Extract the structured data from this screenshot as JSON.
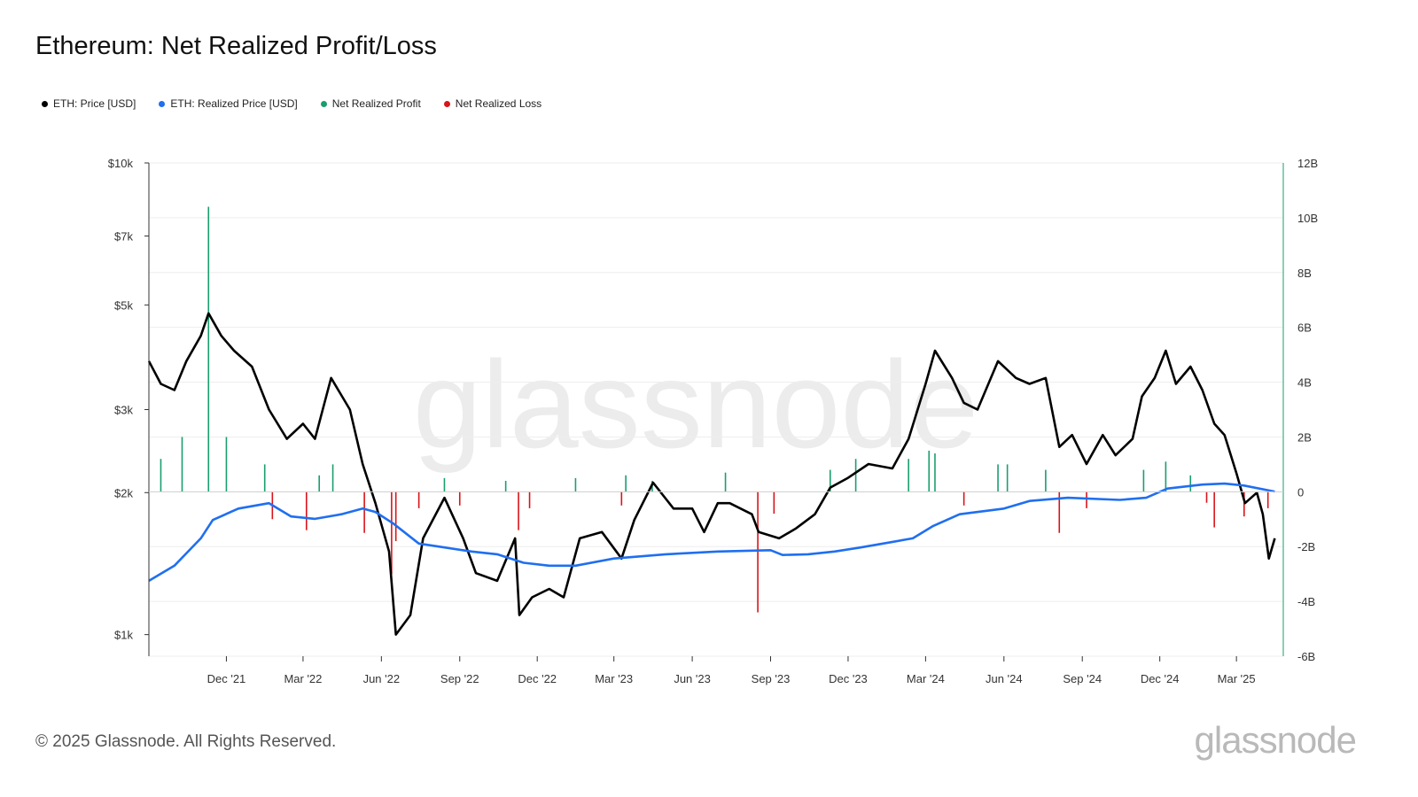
{
  "title": "Ethereum: Net Realized Profit/Loss",
  "legend": [
    {
      "label": "ETH: Price [USD]",
      "color": "#000000"
    },
    {
      "label": "ETH: Realized Price [USD]",
      "color": "#1f6ff0"
    },
    {
      "label": "Net Realized Profit",
      "color": "#1a9e6e"
    },
    {
      "label": "Net Realized Loss",
      "color": "#d9141a"
    }
  ],
  "footer": "© 2025 Glassnode. All Rights Reserved.",
  "brand": "glassnode",
  "watermark": "glassnode",
  "chart_data": {
    "type": "line",
    "x_ticks": [
      "Dec '21",
      "Mar '22",
      "Jun '22",
      "Sep '22",
      "Dec '22",
      "Mar '23",
      "Jun '23",
      "Sep '23",
      "Dec '23",
      "Mar '24",
      "Jun '24",
      "Sep '24",
      "Dec '24",
      "Mar '25"
    ],
    "y_left_ticks": [
      "$10k",
      "$7k",
      "$5k",
      "$3k",
      "$2k",
      "$1k"
    ],
    "y_left_scale": "log",
    "y_left_range": [
      900,
      10000
    ],
    "y_right_ticks": [
      "12B",
      "10B",
      "8B",
      "6B",
      "4B",
      "2B",
      "0",
      "-2B",
      "-4B",
      "-6B"
    ],
    "y_right_range": [
      -6000000000,
      12000000000
    ],
    "grid": "horizontal",
    "legend_position": "top-left",
    "series": [
      {
        "name": "ETH: Price [USD]",
        "color": "#000000",
        "axis": "left",
        "x": [
          "2021-09-01",
          "2021-09-15",
          "2021-10-01",
          "2021-10-15",
          "2021-11-01",
          "2021-11-10",
          "2021-11-25",
          "2021-12-10",
          "2021-12-31",
          "2022-01-20",
          "2022-02-10",
          "2022-03-01",
          "2022-03-15",
          "2022-04-03",
          "2022-04-25",
          "2022-05-10",
          "2022-05-25",
          "2022-06-10",
          "2022-06-18",
          "2022-07-05",
          "2022-07-20",
          "2022-08-14",
          "2022-09-05",
          "2022-09-20",
          "2022-10-15",
          "2022-11-05",
          "2022-11-10",
          "2022-11-25",
          "2022-12-15",
          "2023-01-01",
          "2023-01-20",
          "2023-02-15",
          "2023-03-10",
          "2023-03-25",
          "2023-04-16",
          "2023-05-10",
          "2023-06-01",
          "2023-06-15",
          "2023-07-01",
          "2023-07-15",
          "2023-08-10",
          "2023-08-18",
          "2023-09-11",
          "2023-10-01",
          "2023-10-23",
          "2023-11-10",
          "2023-12-01",
          "2023-12-25",
          "2024-01-22",
          "2024-02-10",
          "2024-03-01",
          "2024-03-12",
          "2024-04-01",
          "2024-04-15",
          "2024-05-01",
          "2024-05-25",
          "2024-06-15",
          "2024-07-01",
          "2024-07-20",
          "2024-08-05",
          "2024-08-20",
          "2024-09-06",
          "2024-09-25",
          "2024-10-10",
          "2024-10-30",
          "2024-11-10",
          "2024-11-25",
          "2024-12-08",
          "2024-12-20",
          "2025-01-06",
          "2025-01-20",
          "2025-02-03",
          "2025-02-15",
          "2025-03-01",
          "2025-03-11",
          "2025-03-25",
          "2025-04-01",
          "2025-04-08",
          "2025-04-15"
        ],
        "values": [
          3800,
          3400,
          3300,
          3800,
          4300,
          4800,
          4300,
          4000,
          3700,
          3000,
          2600,
          2800,
          2600,
          3500,
          3000,
          2300,
          1900,
          1500,
          1000,
          1100,
          1600,
          1950,
          1600,
          1350,
          1300,
          1600,
          1100,
          1200,
          1250,
          1200,
          1600,
          1650,
          1450,
          1750,
          2100,
          1850,
          1850,
          1650,
          1900,
          1900,
          1800,
          1650,
          1600,
          1680,
          1800,
          2050,
          2150,
          2300,
          2250,
          2600,
          3400,
          4000,
          3500,
          3100,
          3000,
          3800,
          3500,
          3400,
          3500,
          2500,
          2650,
          2300,
          2650,
          2400,
          2600,
          3200,
          3500,
          4000,
          3400,
          3700,
          3300,
          2800,
          2650,
          2200,
          1900,
          2000,
          1800,
          1450,
          1600
        ]
      },
      {
        "name": "ETH: Realized Price [USD]",
        "color": "#1f6ff0",
        "axis": "left",
        "x": [
          "2021-09-01",
          "2021-10-01",
          "2021-11-01",
          "2021-11-15",
          "2021-12-15",
          "2022-01-20",
          "2022-02-15",
          "2022-03-15",
          "2022-04-15",
          "2022-05-10",
          "2022-05-25",
          "2022-06-15",
          "2022-07-15",
          "2022-08-15",
          "2022-09-15",
          "2022-10-15",
          "2022-11-15",
          "2022-12-15",
          "2023-01-15",
          "2023-03-01",
          "2023-05-01",
          "2023-07-01",
          "2023-09-01",
          "2023-09-15",
          "2023-10-15",
          "2023-11-15",
          "2023-12-15",
          "2024-01-20",
          "2024-02-15",
          "2024-03-10",
          "2024-04-10",
          "2024-06-01",
          "2024-07-01",
          "2024-08-15",
          "2024-10-15",
          "2024-11-15",
          "2024-12-10",
          "2025-01-20",
          "2025-02-15",
          "2025-03-10",
          "2025-04-15"
        ],
        "values": [
          1300,
          1400,
          1600,
          1750,
          1850,
          1900,
          1780,
          1760,
          1800,
          1850,
          1820,
          1720,
          1560,
          1530,
          1500,
          1480,
          1420,
          1400,
          1400,
          1450,
          1480,
          1500,
          1510,
          1475,
          1480,
          1500,
          1530,
          1570,
          1600,
          1700,
          1800,
          1850,
          1920,
          1950,
          1930,
          1950,
          2040,
          2080,
          2090,
          2070,
          2010
        ]
      },
      {
        "name": "Net Realized Profit",
        "color": "#1a9e6e",
        "axis": "right",
        "type": "bar",
        "x": [
          "2021-09-15",
          "2021-10-10",
          "2021-11-10",
          "2021-12-01",
          "2022-01-15",
          "2022-03-20",
          "2022-04-05",
          "2022-08-14",
          "2022-10-25",
          "2023-01-15",
          "2023-03-15",
          "2023-04-15",
          "2023-07-10",
          "2023-11-10",
          "2023-12-10",
          "2024-02-10",
          "2024-03-05",
          "2024-03-12",
          "2024-05-25",
          "2024-06-05",
          "2024-07-20",
          "2024-11-12",
          "2024-12-08",
          "2025-01-06"
        ],
        "values": [
          1200000000,
          2000000000,
          10400000000,
          2000000000,
          1000000000,
          600000000,
          1000000000,
          500000000,
          400000000,
          500000000,
          600000000,
          400000000,
          700000000,
          800000000,
          1200000000,
          1200000000,
          1500000000,
          1400000000,
          1000000000,
          1000000000,
          800000000,
          800000000,
          1100000000,
          600000000
        ]
      },
      {
        "name": "Net Realized Loss",
        "color": "#d9141a",
        "axis": "right",
        "type": "bar",
        "x": [
          "2022-01-24",
          "2022-03-05",
          "2022-05-12",
          "2022-06-13",
          "2022-06-18",
          "2022-07-15",
          "2022-09-01",
          "2022-11-09",
          "2022-11-22",
          "2023-03-10",
          "2023-08-17",
          "2023-09-05",
          "2024-04-15",
          "2024-08-05",
          "2024-09-06",
          "2025-01-25",
          "2025-02-03",
          "2025-03-10",
          "2025-04-07"
        ],
        "values": [
          -1000000000,
          -1400000000,
          -1500000000,
          -3000000000,
          -1800000000,
          -600000000,
          -500000000,
          -1400000000,
          -600000000,
          -500000000,
          -4400000000,
          -800000000,
          -500000000,
          -1500000000,
          -600000000,
          -400000000,
          -1300000000,
          -900000000,
          -600000000
        ]
      }
    ]
  }
}
